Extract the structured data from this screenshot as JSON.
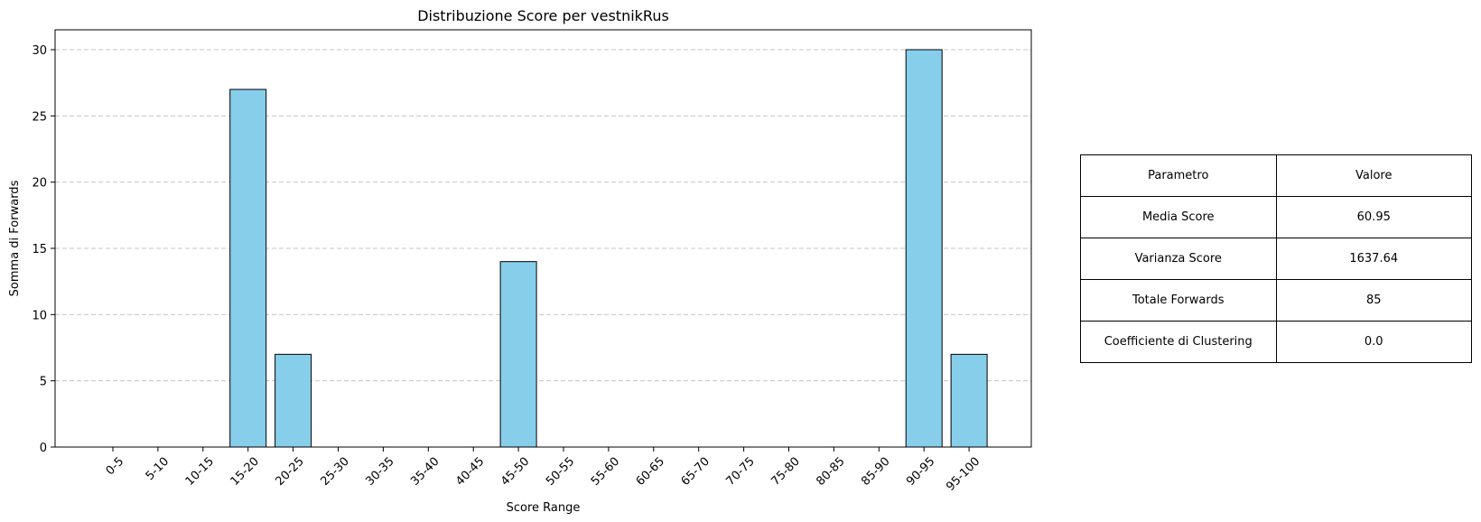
{
  "chart_data": {
    "type": "bar",
    "title": "Distribuzione Score per vestnikRus",
    "xlabel": "Score Range",
    "ylabel": "Somma di Forwards",
    "categories": [
      "0-5",
      "5-10",
      "10-15",
      "15-20",
      "20-25",
      "25-30",
      "30-35",
      "35-40",
      "40-45",
      "45-50",
      "50-55",
      "55-60",
      "60-65",
      "65-70",
      "70-75",
      "75-80",
      "80-85",
      "85-90",
      "90-95",
      "95-100"
    ],
    "values": [
      0,
      0,
      0,
      27,
      7,
      0,
      0,
      0,
      0,
      14,
      0,
      0,
      0,
      0,
      0,
      0,
      0,
      0,
      30,
      7
    ],
    "ylim": [
      0,
      31.5
    ],
    "yticks": [
      0,
      5,
      10,
      15,
      20,
      25,
      30
    ],
    "grid": "y-dashed",
    "bar_color": "#87ceeb",
    "edge_color": "#000000"
  },
  "table": {
    "header": [
      "Parametro",
      "Valore"
    ],
    "rows": [
      [
        "Media Score",
        "60.95"
      ],
      [
        "Varianza Score",
        "1637.64"
      ],
      [
        "Totale Forwards",
        "85"
      ],
      [
        "Coefficiente di Clustering",
        "0.0"
      ]
    ]
  }
}
